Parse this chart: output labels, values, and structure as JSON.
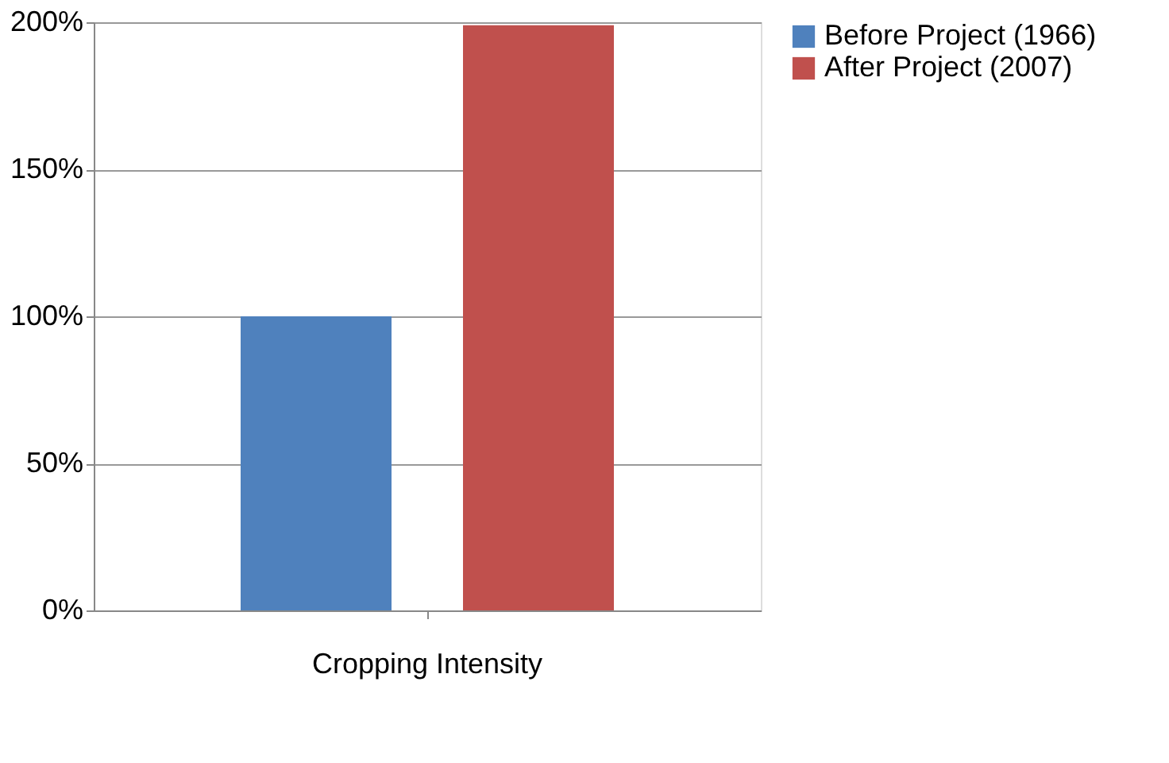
{
  "chart_data": {
    "type": "bar",
    "categories": [
      "Cropping Intensity"
    ],
    "series": [
      {
        "name": "Before Project (1966)",
        "color": "#4f81bd",
        "values": [
          100
        ]
      },
      {
        "name": "After Project (2007)",
        "color": "#c0504d",
        "values": [
          199
        ]
      }
    ],
    "ylim": [
      0,
      200
    ],
    "yticks": [
      {
        "value": 0,
        "label": "0%"
      },
      {
        "value": 50,
        "label": "50%"
      },
      {
        "value": 100,
        "label": "100%"
      },
      {
        "value": 150,
        "label": "150%"
      },
      {
        "value": 200,
        "label": "200%"
      }
    ],
    "grid": "y",
    "legend": "right"
  }
}
